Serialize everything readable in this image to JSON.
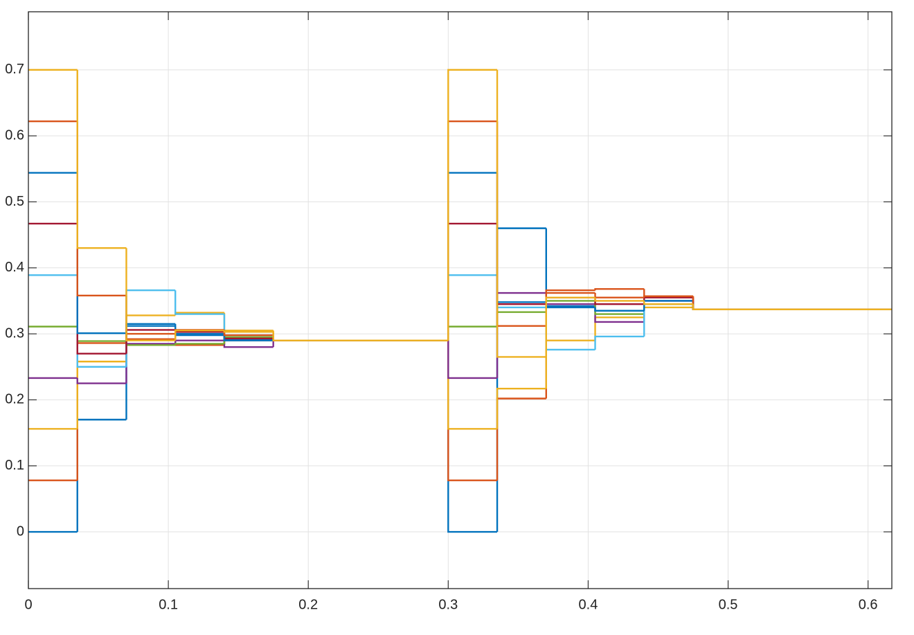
{
  "chart_data": {
    "type": "step",
    "x": [
      0,
      0.035,
      0.07,
      0.105,
      0.14,
      0.175,
      0.3,
      0.335,
      0.37,
      0.405,
      0.44,
      0.475
    ],
    "series": [
      {
        "color": "#0072BD",
        "values": [
          0,
          0.17,
          0.312,
          0.3,
          0.292,
          0.29,
          0,
          0.46,
          0.342,
          0.335,
          0.345,
          0.337
        ]
      },
      {
        "color": "#D95319",
        "values": [
          0.078,
          0.286,
          0.3,
          0.283,
          0.29,
          0.29,
          0.078,
          0.202,
          0.366,
          0.368,
          0.357,
          0.337
        ]
      },
      {
        "color": "#EDB120",
        "values": [
          0.156,
          0.258,
          0.328,
          0.332,
          0.305,
          0.29,
          0.156,
          0.217,
          0.29,
          0.325,
          0.34,
          0.337
        ]
      },
      {
        "color": "#7E2F8E",
        "values": [
          0.233,
          0.225,
          0.285,
          0.29,
          0.28,
          0.29,
          0.233,
          0.362,
          0.345,
          0.318,
          0.35,
          0.337
        ]
      },
      {
        "color": "#77AC30",
        "values": [
          0.311,
          0.289,
          0.283,
          0.285,
          0.295,
          0.29,
          0.311,
          0.333,
          0.35,
          0.33,
          0.345,
          0.337
        ]
      },
      {
        "color": "#4DBEEE",
        "values": [
          0.389,
          0.25,
          0.366,
          0.33,
          0.298,
          0.29,
          0.389,
          0.34,
          0.276,
          0.296,
          0.345,
          0.337
        ]
      },
      {
        "color": "#A2142F",
        "values": [
          0.467,
          0.27,
          0.306,
          0.303,
          0.293,
          0.29,
          0.467,
          0.345,
          0.355,
          0.345,
          0.355,
          0.337
        ]
      },
      {
        "color": "#0072BD",
        "values": [
          0.544,
          0.301,
          0.315,
          0.298,
          0.29,
          0.29,
          0.544,
          0.348,
          0.34,
          0.335,
          0.35,
          0.337
        ]
      },
      {
        "color": "#D95319",
        "values": [
          0.622,
          0.358,
          0.292,
          0.306,
          0.298,
          0.29,
          0.622,
          0.312,
          0.362,
          0.355,
          0.357,
          0.337
        ]
      },
      {
        "color": "#EDB120",
        "values": [
          0.7,
          0.43,
          0.29,
          0.305,
          0.303,
          0.29,
          0.7,
          0.265,
          0.355,
          0.35,
          0.345,
          0.337
        ]
      }
    ],
    "xlim": [
      0,
      0.617
    ],
    "ylim": [
      -0.086,
      0.788
    ],
    "xticks": [
      0,
      0.1,
      0.2,
      0.3,
      0.4,
      0.5,
      0.6
    ],
    "yticks": [
      0,
      0.1,
      0.2,
      0.3,
      0.4,
      0.5,
      0.6,
      0.7
    ],
    "grid": true
  }
}
